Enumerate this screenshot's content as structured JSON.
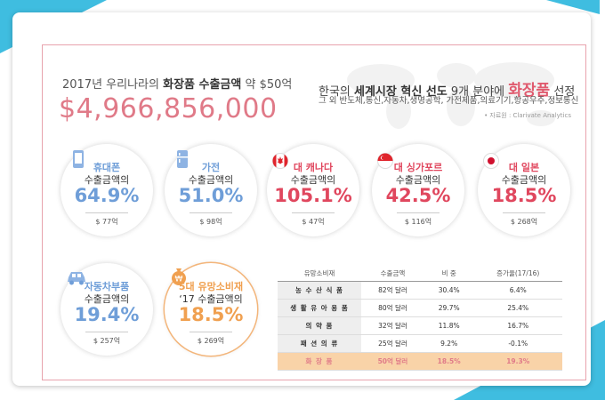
{
  "headline": {
    "prefix": "2017년 우리나라의 ",
    "bold": "화장품 수출금액",
    "suffix": " 약 $50억",
    "big_number": "$4,966,856,000"
  },
  "right_headline": {
    "prefix": "한국의 ",
    "bold": "세계시장 혁신 선도",
    "mid": " 9개 분야에 ",
    "pink": "화장품",
    "suffix": " 선정",
    "subtitle": "그 외 반도체,통신,자동차,생명공학, 가전제품,의료기기,항공우주,정보통신",
    "source": "• 자료원 : Clarivate Analytics"
  },
  "circles": [
    {
      "head": "휴대폰",
      "sub": "수출금액의",
      "pct": "64.9%",
      "amount": "$ 77억",
      "icon": "phone-icon",
      "color": "#6f9ed8"
    },
    {
      "head": "가전",
      "sub": "수출금액의",
      "pct": "51.0%",
      "amount": "$ 98억",
      "icon": "fridge-icon",
      "color": "#6f9ed8"
    },
    {
      "head": "대 캐나다",
      "sub": "수출금액의",
      "pct": "105.1%",
      "amount": "$ 47억",
      "icon": "canada-flag-icon",
      "color": "#e0475e"
    },
    {
      "head": "대 싱가포르",
      "sub": "수출금액의",
      "pct": "42.5%",
      "amount": "$ 116억",
      "icon": "singapore-flag-icon",
      "color": "#e0475e"
    },
    {
      "head": "대 일본",
      "sub": "수출금액의",
      "pct": "18.5%",
      "amount": "$ 268억",
      "icon": "japan-flag-icon",
      "color": "#e0475e"
    },
    {
      "head": "자동차부품",
      "sub": "수출금액의",
      "pct": "19.4%",
      "amount": "$ 257억",
      "icon": "car-icon",
      "color": "#6f9ed8"
    },
    {
      "head": "5대 유망소비재",
      "sub": "‘17 수출금액의",
      "pct": "18.5%",
      "amount": "$ 269억",
      "icon": "won-bag-icon",
      "color": "#f0a050"
    }
  ],
  "table": {
    "headers": [
      "유망소비재",
      "수출금액",
      "비 중",
      "증가율(17/16)"
    ],
    "rows": [
      [
        "농 수 산 식 품",
        "82억 달러",
        "30.4%",
        "6.4%"
      ],
      [
        "생 활 유 아 용 품",
        "80억 달러",
        "29.7%",
        "25.4%"
      ],
      [
        "의 약 품",
        "32억 달러",
        "11.8%",
        "16.7%"
      ],
      [
        "패 션 의 류",
        "25억 달러",
        "9.2%",
        "-0.1%"
      ],
      [
        "화 장 품",
        "50억 달러",
        "18.5%",
        "19.3%"
      ]
    ]
  }
}
